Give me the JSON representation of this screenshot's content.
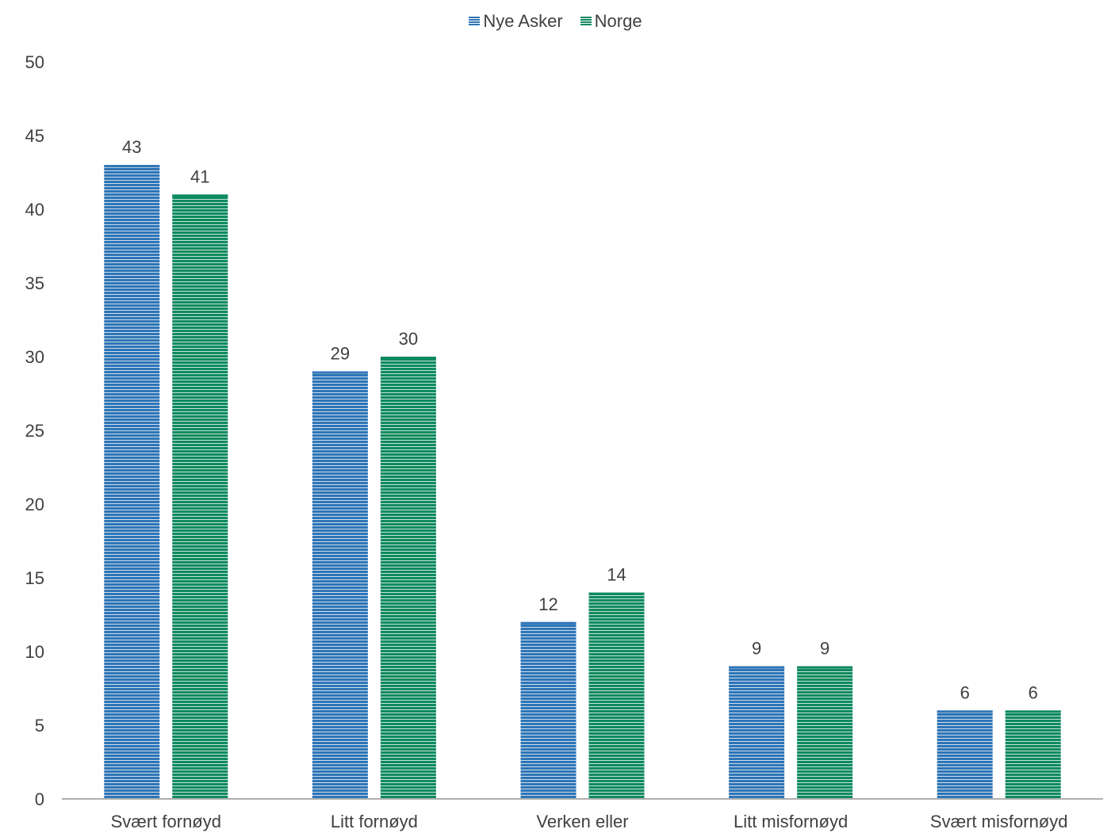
{
  "colors": {
    "nye_asker": "#2e75b6",
    "norge": "#0f8a5f",
    "axis": "#b0b0b0",
    "text": "#404040"
  },
  "chart_data": {
    "type": "bar",
    "categories": [
      "Svært fornøyd",
      "Litt fornøyd",
      "Verken eller",
      "Litt misfornøyd",
      "Svært misfornøyd"
    ],
    "series": [
      {
        "name": "Nye Asker",
        "values": [
          43,
          29,
          12,
          9,
          6
        ]
      },
      {
        "name": "Norge",
        "values": [
          41,
          30,
          14,
          9,
          6
        ]
      }
    ],
    "ylim": [
      0,
      50
    ],
    "yticks": [
      "0",
      "5",
      "10",
      "15",
      "20",
      "25",
      "30",
      "35",
      "40",
      "45",
      "50"
    ],
    "grid": false,
    "legend_position": "top-center",
    "data_labels": true
  }
}
